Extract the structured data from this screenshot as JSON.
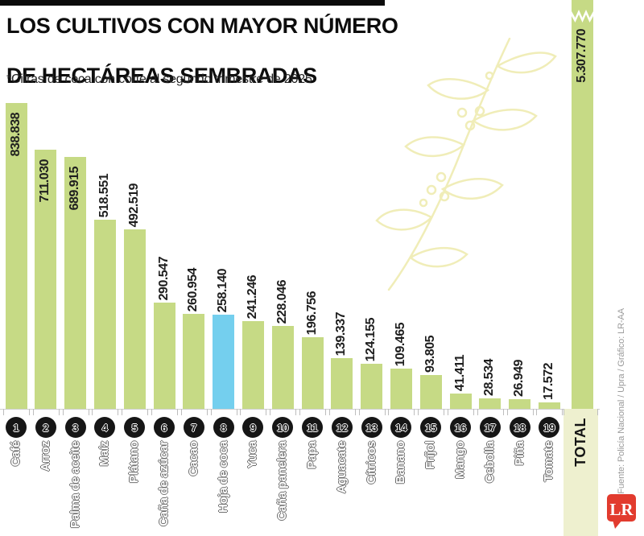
{
  "header": {
    "title_line1": "LOS CULTIVOS CON MAYOR NÚMERO",
    "title_line2": "DE HECTÁREAS SEMBRADAS",
    "subtitle": "*Cifras de coca con corte al segundo trimestre de 2025"
  },
  "chart_data": {
    "type": "bar",
    "title": "Los cultivos con mayor número de hectáreas sembradas",
    "unit": "hectáreas",
    "categories": [
      "Café",
      "Arroz",
      "Palma de aceite",
      "Maíz",
      "Plátano",
      "Caña de azúcar",
      "Cacao",
      "Hoja de coca",
      "Yuca",
      "Caña panelera",
      "Papa",
      "Aguacate",
      "Cítricos",
      "Banano",
      "Fríjol",
      "Mango",
      "Cebolla",
      "Piña",
      "Tomate"
    ],
    "values": [
      838838,
      711030,
      689915,
      518551,
      492519,
      290547,
      260954,
      258140,
      241246,
      228046,
      196756,
      139337,
      124155,
      109465,
      93805,
      41411,
      28534,
      26949,
      17572
    ],
    "value_labels": [
      "838.838",
      "711.030",
      "689.915",
      "518.551",
      "492.519",
      "290.547",
      "260.954",
      "258.140",
      "241.246",
      "228.046",
      "196.756",
      "139.337",
      "124.155",
      "109.465",
      "93.805",
      "41.411",
      "28.534",
      "26.949",
      "17.572"
    ],
    "ranks": [
      1,
      2,
      3,
      4,
      5,
      6,
      7,
      8,
      9,
      10,
      11,
      12,
      13,
      14,
      15,
      16,
      17,
      18,
      19
    ],
    "highlight_category": "Hoja de coca",
    "highlight_index": 7,
    "total": {
      "label": "TOTAL",
      "value": 5307770,
      "value_label": "5.307.770",
      "axis_break": true
    },
    "colors": {
      "bar": "#c6da85",
      "highlight": "#74cfee",
      "total_band": "#eef0cf",
      "rank_circle": "#161616"
    },
    "ylim": [
      0,
      870000
    ],
    "legend": "none",
    "grid": "off"
  },
  "footer": {
    "source": "Fuente: Policía Nacional / Upra / Gráfico: LR-AA",
    "logo_text": "LR"
  }
}
